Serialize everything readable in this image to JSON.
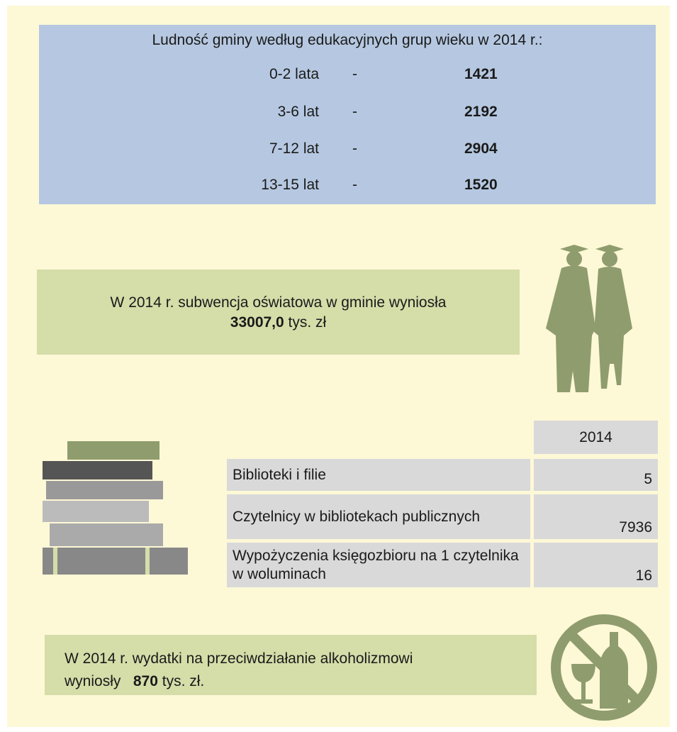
{
  "population": {
    "title": "Ludność gminy według edukacyjnych grup wieku w 2014 r.:",
    "rows": [
      {
        "label": "0-2 lata",
        "dash": "-",
        "value": "1421"
      },
      {
        "label": "3-6 lat",
        "dash": "-",
        "value": "2192"
      },
      {
        "label": "7-12 lat",
        "dash": "-",
        "value": "2904"
      },
      {
        "label": "13-15 lat",
        "dash": "-",
        "value": "1520"
      }
    ]
  },
  "subsidy": {
    "text": "W 2014 r. subwencja oświatowa w gminie wyniosła",
    "amount": "33007,0",
    "unit": "tys. zł"
  },
  "libraries": {
    "header": "2014",
    "rows": [
      [
        "Biblioteki i filie",
        "5"
      ],
      [
        "Czytelnicy w bibliotekach publicznych",
        "7936"
      ],
      [
        "Wypożyczenia księgozbioru na 1 czytelnika w woluminach",
        "16"
      ]
    ]
  },
  "alcohol": {
    "text": "W 2014 r. wydatki na przeciwdziałanie alkoholizmowi",
    "text2": "wyniosły",
    "amount": "870",
    "unit": "tys. zł."
  }
}
